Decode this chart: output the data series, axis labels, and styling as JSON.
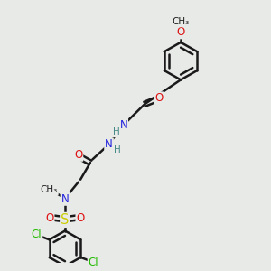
{
  "bg_color": "#e8eae8",
  "bond_color": "#1a1a1a",
  "bond_width": 1.8,
  "atom_colors": {
    "C": "#1a1a1a",
    "N": "#2222dd",
    "O": "#dd1111",
    "S": "#cccc00",
    "Cl": "#22bb00",
    "H": "#448888"
  },
  "font_size": 8.5,
  "small_font": 7.5,
  "bg_label": "#e8eae8"
}
